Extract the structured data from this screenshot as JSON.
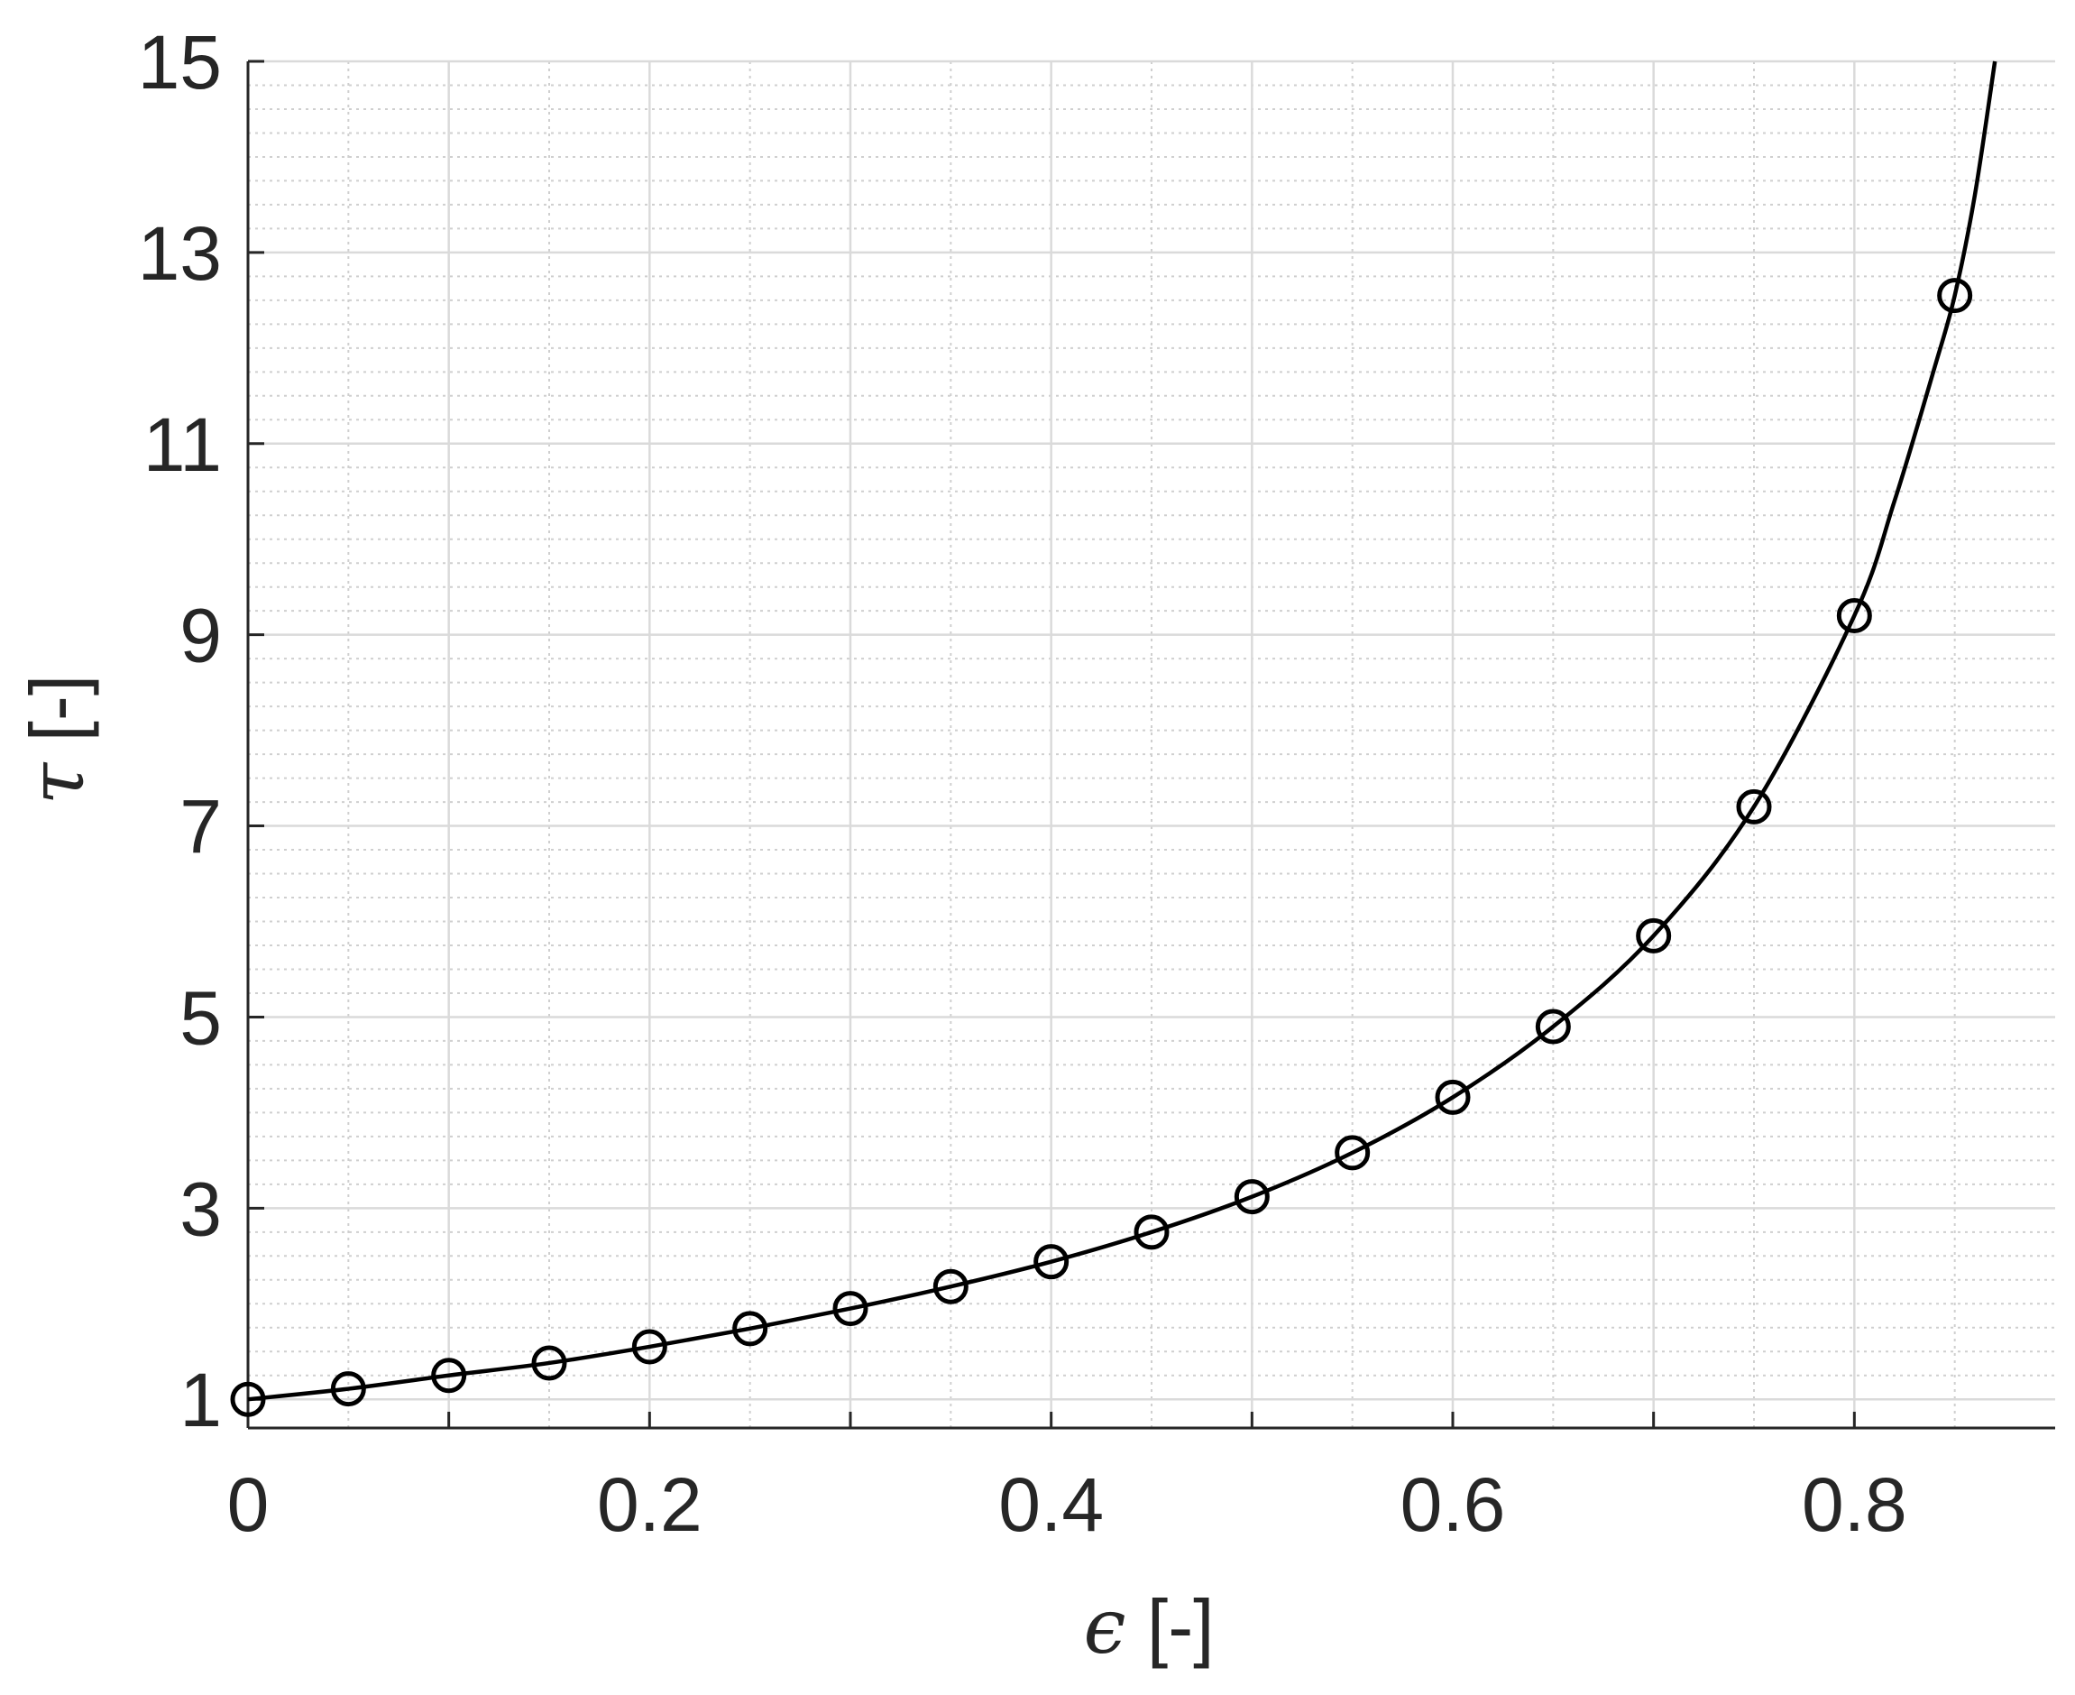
{
  "chart_data": {
    "type": "line",
    "title": "",
    "xlabel": {
      "symbol": "ϵ",
      "unit": " [-]"
    },
    "ylabel": {
      "symbol": "τ",
      "unit": " [-]"
    },
    "xlim": [
      0,
      0.9
    ],
    "ylim": [
      0.7,
      15
    ],
    "xticks": [
      0,
      0.2,
      0.4,
      0.6,
      0.8
    ],
    "xtick_labels": [
      "0",
      "0.2",
      "0.4",
      "0.6",
      "0.8"
    ],
    "yticks": [
      1,
      3,
      5,
      7,
      9,
      11,
      13,
      15
    ],
    "ytick_labels": [
      "1",
      "3",
      "5",
      "7",
      "9",
      "11",
      "13",
      "15"
    ],
    "grid": true,
    "minor_grid": true,
    "legend": false,
    "series": [
      {
        "style": "line",
        "color": "#000000",
        "x": [
          0,
          0.05,
          0.1,
          0.15,
          0.2,
          0.25,
          0.3,
          0.35,
          0.4,
          0.45,
          0.5,
          0.55,
          0.6,
          0.65,
          0.7,
          0.75,
          0.8,
          0.82,
          0.84,
          0.85,
          0.86,
          0.87
        ],
        "y": [
          1.0,
          1.11,
          1.25,
          1.38,
          1.55,
          1.74,
          1.95,
          2.18,
          2.44,
          2.75,
          3.12,
          3.58,
          4.16,
          4.9,
          5.85,
          7.2,
          9.2,
          10.4,
          11.8,
          12.55,
          13.6,
          15.0
        ]
      },
      {
        "style": "markers",
        "marker": "circle",
        "color": "#000000",
        "x": [
          0,
          0.05,
          0.1,
          0.15,
          0.2,
          0.25,
          0.3,
          0.35,
          0.4,
          0.45,
          0.5,
          0.55,
          0.6,
          0.65,
          0.7,
          0.75,
          0.8,
          0.85
        ],
        "y": [
          1.0,
          1.11,
          1.25,
          1.38,
          1.55,
          1.74,
          1.95,
          2.18,
          2.44,
          2.75,
          3.12,
          3.58,
          4.16,
          4.9,
          5.85,
          7.2,
          9.2,
          12.55
        ]
      }
    ]
  }
}
